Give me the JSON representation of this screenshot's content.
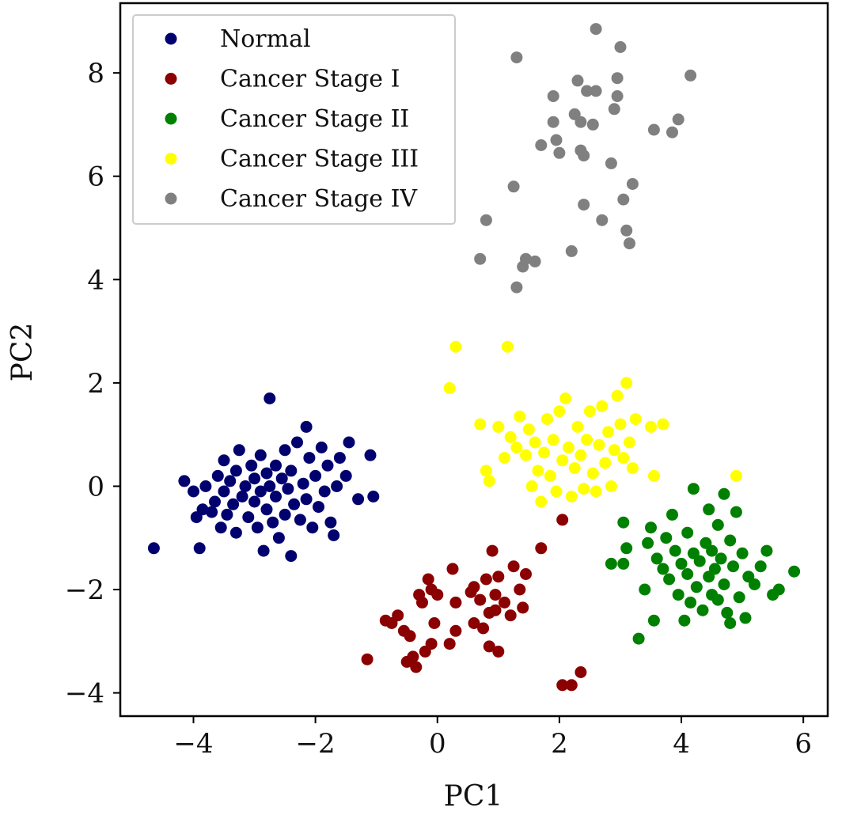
{
  "chart_data": {
    "type": "scatter",
    "title": "",
    "xlabel": "PC1",
    "ylabel": "PC2",
    "xlim": [
      -5.2,
      6.4
    ],
    "ylim": [
      -4.45,
      9.35
    ],
    "xticks": [
      -4,
      -2,
      0,
      2,
      4,
      6
    ],
    "yticks": [
      -4,
      -2,
      0,
      2,
      4,
      6,
      8
    ],
    "xtick_labels": [
      "−4",
      "−2",
      "0",
      "2",
      "4",
      "6"
    ],
    "ytick_labels": [
      "−4",
      "−2",
      "0",
      "2",
      "4",
      "6",
      "8"
    ],
    "grid": false,
    "legend_position": "top-left",
    "series": [
      {
        "name": "Normal",
        "color": "#00006f",
        "points": [
          [
            -4.65,
            -1.2
          ],
          [
            -4.15,
            0.1
          ],
          [
            -4.0,
            -0.1
          ],
          [
            -3.95,
            -0.6
          ],
          [
            -3.9,
            -1.2
          ],
          [
            -3.85,
            -0.45
          ],
          [
            -3.8,
            0.0
          ],
          [
            -3.7,
            -0.5
          ],
          [
            -3.65,
            -0.3
          ],
          [
            -3.6,
            0.2
          ],
          [
            -3.55,
            -0.8
          ],
          [
            -3.5,
            -0.1
          ],
          [
            -3.5,
            0.5
          ],
          [
            -3.45,
            -0.55
          ],
          [
            -3.4,
            0.1
          ],
          [
            -3.35,
            -0.35
          ],
          [
            -3.3,
            0.3
          ],
          [
            -3.3,
            -0.9
          ],
          [
            -3.25,
            0.7
          ],
          [
            -3.2,
            -0.2
          ],
          [
            -3.15,
            0.0
          ],
          [
            -3.1,
            -0.6
          ],
          [
            -3.05,
            0.4
          ],
          [
            -3.0,
            -0.3
          ],
          [
            -3.0,
            0.15
          ],
          [
            -2.95,
            -0.8
          ],
          [
            -2.9,
            0.6
          ],
          [
            -2.9,
            -0.1
          ],
          [
            -2.85,
            -1.25
          ],
          [
            -2.8,
            0.25
          ],
          [
            -2.8,
            -0.45
          ],
          [
            -2.75,
            1.7
          ],
          [
            -2.75,
            0.0
          ],
          [
            -2.7,
            -0.7
          ],
          [
            -2.65,
            0.4
          ],
          [
            -2.65,
            -0.2
          ],
          [
            -2.6,
            -1.0
          ],
          [
            -2.55,
            0.15
          ],
          [
            -2.5,
            -0.55
          ],
          [
            -2.5,
            0.7
          ],
          [
            -2.45,
            -0.05
          ],
          [
            -2.4,
            -1.35
          ],
          [
            -2.4,
            0.3
          ],
          [
            -2.35,
            -0.35
          ],
          [
            -2.3,
            0.85
          ],
          [
            -2.25,
            -0.65
          ],
          [
            -2.2,
            0.05
          ],
          [
            -2.15,
            1.15
          ],
          [
            -2.15,
            -0.25
          ],
          [
            -2.1,
            0.55
          ],
          [
            -2.05,
            -0.8
          ],
          [
            -2.0,
            0.2
          ],
          [
            -1.95,
            -0.4
          ],
          [
            -1.9,
            0.75
          ],
          [
            -1.85,
            -0.1
          ],
          [
            -1.8,
            0.4
          ],
          [
            -1.75,
            -0.7
          ],
          [
            -1.7,
            -0.95
          ],
          [
            -1.65,
            0.0
          ],
          [
            -1.6,
            0.55
          ],
          [
            -1.5,
            0.2
          ],
          [
            -1.45,
            0.85
          ],
          [
            -1.3,
            -0.25
          ],
          [
            -1.1,
            0.6
          ],
          [
            -1.05,
            -0.2
          ]
        ]
      },
      {
        "name": "Cancer Stage I",
        "color": "#8b0000",
        "points": [
          [
            -1.15,
            -3.35
          ],
          [
            -0.85,
            -2.6
          ],
          [
            -0.75,
            -2.65
          ],
          [
            -0.65,
            -2.5
          ],
          [
            -0.55,
            -2.8
          ],
          [
            -0.5,
            -3.4
          ],
          [
            -0.45,
            -2.9
          ],
          [
            -0.4,
            -3.3
          ],
          [
            -0.35,
            -3.5
          ],
          [
            -0.3,
            -2.1
          ],
          [
            -0.25,
            -2.25
          ],
          [
            -0.2,
            -3.2
          ],
          [
            -0.15,
            -1.8
          ],
          [
            -0.1,
            -2.0
          ],
          [
            -0.1,
            -3.05
          ],
          [
            -0.05,
            -2.65
          ],
          [
            0.0,
            -2.1
          ],
          [
            0.2,
            -3.05
          ],
          [
            0.25,
            -1.6
          ],
          [
            0.3,
            -2.25
          ],
          [
            0.3,
            -2.8
          ],
          [
            0.55,
            -2.05
          ],
          [
            0.6,
            -1.95
          ],
          [
            0.6,
            -2.65
          ],
          [
            0.7,
            -2.2
          ],
          [
            0.75,
            -2.75
          ],
          [
            0.8,
            -1.8
          ],
          [
            0.85,
            -3.1
          ],
          [
            0.85,
            -2.45
          ],
          [
            0.9,
            -1.25
          ],
          [
            0.95,
            -2.1
          ],
          [
            0.95,
            -2.4
          ],
          [
            1.0,
            -1.75
          ],
          [
            1.0,
            -3.2
          ],
          [
            1.1,
            -2.25
          ],
          [
            1.2,
            -2.5
          ],
          [
            1.25,
            -1.55
          ],
          [
            1.35,
            -2.0
          ],
          [
            1.45,
            -1.7
          ],
          [
            1.4,
            -2.35
          ],
          [
            1.7,
            -1.2
          ],
          [
            2.05,
            -0.65
          ],
          [
            2.05,
            -3.85
          ],
          [
            2.2,
            -3.85
          ],
          [
            2.35,
            -3.6
          ]
        ]
      },
      {
        "name": "Cancer Stage II",
        "color": "#008000",
        "points": [
          [
            2.85,
            -1.5
          ],
          [
            3.05,
            -1.5
          ],
          [
            3.05,
            -0.7
          ],
          [
            3.1,
            -1.2
          ],
          [
            3.3,
            -2.95
          ],
          [
            3.4,
            -2.0
          ],
          [
            3.45,
            -1.1
          ],
          [
            3.5,
            -0.8
          ],
          [
            3.55,
            -2.6
          ],
          [
            3.6,
            -1.4
          ],
          [
            3.7,
            -1.6
          ],
          [
            3.75,
            -1.0
          ],
          [
            3.8,
            -1.8
          ],
          [
            3.85,
            -0.55
          ],
          [
            3.9,
            -1.25
          ],
          [
            3.95,
            -2.1
          ],
          [
            4.0,
            -1.5
          ],
          [
            4.05,
            -2.6
          ],
          [
            4.1,
            -0.9
          ],
          [
            4.1,
            -1.7
          ],
          [
            4.15,
            -2.25
          ],
          [
            4.2,
            -1.3
          ],
          [
            4.2,
            -0.05
          ],
          [
            4.25,
            -1.95
          ],
          [
            4.3,
            -1.45
          ],
          [
            4.35,
            -2.4
          ],
          [
            4.4,
            -1.1
          ],
          [
            4.45,
            -1.75
          ],
          [
            4.45,
            -0.45
          ],
          [
            4.5,
            -2.1
          ],
          [
            4.5,
            -1.25
          ],
          [
            4.55,
            -1.6
          ],
          [
            4.6,
            -0.75
          ],
          [
            4.6,
            -2.2
          ],
          [
            4.65,
            -1.4
          ],
          [
            4.7,
            -0.15
          ],
          [
            4.7,
            -1.9
          ],
          [
            4.75,
            -2.45
          ],
          [
            4.8,
            -1.05
          ],
          [
            4.8,
            -2.65
          ],
          [
            4.85,
            -1.55
          ],
          [
            4.9,
            -0.5
          ],
          [
            4.95,
            -2.15
          ],
          [
            5.0,
            -1.3
          ],
          [
            5.05,
            -2.55
          ],
          [
            5.1,
            -1.75
          ],
          [
            5.2,
            -1.9
          ],
          [
            5.3,
            -1.55
          ],
          [
            5.4,
            -1.25
          ],
          [
            5.5,
            -2.1
          ],
          [
            5.6,
            -2.0
          ],
          [
            5.85,
            -1.65
          ]
        ]
      },
      {
        "name": "Cancer Stage III",
        "color": "#ffff00",
        "points": [
          [
            0.2,
            1.9
          ],
          [
            0.3,
            2.7
          ],
          [
            0.7,
            1.2
          ],
          [
            0.8,
            0.3
          ],
          [
            0.85,
            0.1
          ],
          [
            1.0,
            1.15
          ],
          [
            1.1,
            0.55
          ],
          [
            1.15,
            2.7
          ],
          [
            1.2,
            0.95
          ],
          [
            1.3,
            0.75
          ],
          [
            1.35,
            1.35
          ],
          [
            1.45,
            0.6
          ],
          [
            1.5,
            1.1
          ],
          [
            1.55,
            0.0
          ],
          [
            1.6,
            0.85
          ],
          [
            1.65,
            0.3
          ],
          [
            1.7,
            -0.3
          ],
          [
            1.75,
            0.65
          ],
          [
            1.8,
            1.3
          ],
          [
            1.85,
            0.2
          ],
          [
            1.9,
            0.9
          ],
          [
            1.95,
            -0.1
          ],
          [
            2.0,
            1.45
          ],
          [
            2.05,
            0.5
          ],
          [
            2.1,
            1.7
          ],
          [
            2.15,
            0.75
          ],
          [
            2.2,
            -0.2
          ],
          [
            2.25,
            0.35
          ],
          [
            2.3,
            1.15
          ],
          [
            2.35,
            0.6
          ],
          [
            2.4,
            -0.05
          ],
          [
            2.45,
            0.9
          ],
          [
            2.5,
            1.45
          ],
          [
            2.55,
            0.25
          ],
          [
            2.6,
            -0.1
          ],
          [
            2.65,
            0.8
          ],
          [
            2.7,
            1.55
          ],
          [
            2.75,
            0.45
          ],
          [
            2.8,
            1.05
          ],
          [
            2.85,
            0.0
          ],
          [
            2.9,
            0.7
          ],
          [
            2.95,
            1.75
          ],
          [
            3.0,
            1.2
          ],
          [
            3.05,
            0.55
          ],
          [
            3.1,
            2.0
          ],
          [
            3.15,
            0.85
          ],
          [
            3.2,
            0.35
          ],
          [
            3.25,
            1.3
          ],
          [
            3.5,
            1.15
          ],
          [
            3.55,
            0.2
          ],
          [
            3.7,
            1.2
          ],
          [
            4.9,
            0.2
          ]
        ]
      },
      {
        "name": "Cancer Stage IV",
        "color": "#808080",
        "points": [
          [
            0.7,
            4.4
          ],
          [
            0.8,
            5.15
          ],
          [
            1.25,
            5.8
          ],
          [
            1.3,
            8.3
          ],
          [
            1.3,
            3.85
          ],
          [
            1.4,
            4.25
          ],
          [
            1.45,
            4.4
          ],
          [
            1.6,
            4.35
          ],
          [
            1.7,
            6.6
          ],
          [
            1.9,
            7.05
          ],
          [
            1.9,
            7.55
          ],
          [
            1.95,
            6.7
          ],
          [
            2.0,
            6.45
          ],
          [
            2.2,
            4.55
          ],
          [
            2.25,
            7.2
          ],
          [
            2.3,
            7.85
          ],
          [
            2.35,
            7.05
          ],
          [
            2.35,
            6.5
          ],
          [
            2.4,
            6.4
          ],
          [
            2.4,
            5.45
          ],
          [
            2.45,
            7.65
          ],
          [
            2.55,
            7.0
          ],
          [
            2.6,
            8.85
          ],
          [
            2.6,
            7.65
          ],
          [
            2.7,
            5.15
          ],
          [
            2.85,
            6.25
          ],
          [
            2.9,
            7.3
          ],
          [
            2.95,
            7.9
          ],
          [
            2.95,
            7.55
          ],
          [
            3.0,
            8.5
          ],
          [
            3.05,
            5.55
          ],
          [
            3.1,
            4.95
          ],
          [
            3.15,
            4.7
          ],
          [
            3.2,
            5.85
          ],
          [
            3.55,
            6.9
          ],
          [
            3.85,
            6.85
          ],
          [
            3.95,
            7.1
          ],
          [
            4.15,
            7.95
          ]
        ]
      }
    ]
  }
}
